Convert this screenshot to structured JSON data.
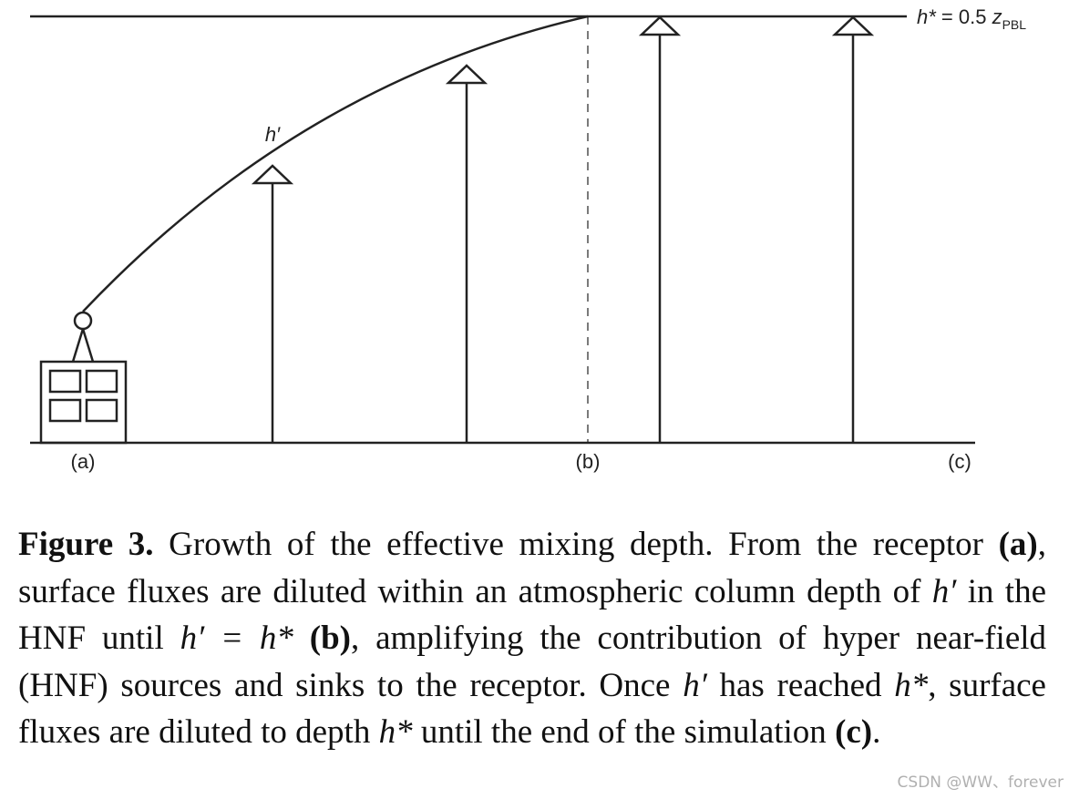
{
  "diagram": {
    "top_label": {
      "h": "h*",
      "eq": " = 0.5 ",
      "z": "z",
      "sub": "PBL"
    },
    "curve_label": "h′",
    "labels": [
      "(a)",
      "(b)",
      "(c)"
    ]
  },
  "caption": {
    "runs": [
      {
        "text": "Figure 3.",
        "style": "bold"
      },
      {
        "text": " Growth of the effective mixing depth. From the receptor ",
        "style": "normal"
      },
      {
        "text": "(a)",
        "style": "bold"
      },
      {
        "text": ", surface fluxes are diluted within an atmospheric column depth of ",
        "style": "normal"
      },
      {
        "text": "h′",
        "style": "italic"
      },
      {
        "text": " in the HNF until ",
        "style": "normal"
      },
      {
        "text": "h′ = h*",
        "style": "italic"
      },
      {
        "text": " ",
        "style": "normal"
      },
      {
        "text": "(b)",
        "style": "bold"
      },
      {
        "text": ", amplifying the contribution of hyper near-field (HNF) sources and sinks to the receptor. Once ",
        "style": "normal"
      },
      {
        "text": "h′",
        "style": "italic"
      },
      {
        "text": " has reached ",
        "style": "normal"
      },
      {
        "text": "h*",
        "style": "italic"
      },
      {
        "text": ", surface fluxes are diluted to depth ",
        "style": "normal"
      },
      {
        "text": "h*",
        "style": "italic"
      },
      {
        "text": " until the end of the simulation ",
        "style": "normal"
      },
      {
        "text": "(c)",
        "style": "bold"
      },
      {
        "text": ".",
        "style": "normal"
      }
    ]
  },
  "watermark": "CSDN @WW、forever"
}
